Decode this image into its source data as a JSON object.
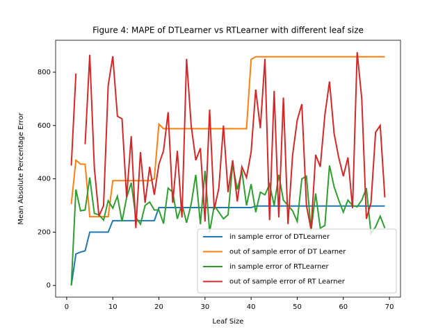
{
  "chart_data": {
    "type": "line",
    "title": "Figure 4: MAPE of DTLearner vs RTLearner with different leaf size",
    "x_label": "Leaf Size",
    "y_label": "Mean Absolute Percentage Error",
    "x": [
      1,
      2,
      3,
      4,
      5,
      6,
      7,
      8,
      9,
      10,
      11,
      12,
      13,
      14,
      15,
      16,
      17,
      18,
      19,
      20,
      21,
      22,
      23,
      24,
      25,
      26,
      27,
      28,
      29,
      30,
      31,
      32,
      33,
      34,
      35,
      36,
      37,
      38,
      39,
      40,
      41,
      42,
      43,
      44,
      45,
      46,
      47,
      48,
      49,
      50,
      51,
      52,
      53,
      54,
      55,
      56,
      57,
      58,
      59,
      60,
      61,
      62,
      63,
      64,
      65,
      66,
      67,
      68,
      69
    ],
    "series": [
      {
        "name": "in sample error of DTLearner",
        "color": "#1f77b4",
        "values": [
          0,
          118,
          125,
          130,
          200,
          200,
          200,
          200,
          200,
          243,
          243,
          243,
          243,
          243,
          243,
          243,
          243,
          243,
          243,
          292,
          292,
          292,
          292,
          292,
          292,
          292,
          292,
          292,
          292,
          292,
          292,
          292,
          292,
          292,
          292,
          292,
          292,
          292,
          292,
          292,
          298,
          298,
          298,
          298,
          298,
          298,
          298,
          298,
          298,
          298,
          298,
          298,
          298,
          298,
          298,
          298,
          298,
          298,
          298,
          298,
          298,
          298,
          298,
          298,
          298,
          298,
          298,
          298,
          298
        ]
      },
      {
        "name": "out of sample error of DT Learner",
        "color": "#ff7f0e",
        "values": [
          305,
          470,
          455,
          455,
          258,
          258,
          258,
          258,
          258,
          393,
          393,
          393,
          393,
          393,
          393,
          393,
          393,
          393,
          400,
          605,
          588,
          588,
          588,
          588,
          588,
          588,
          588,
          588,
          588,
          588,
          588,
          588,
          588,
          588,
          588,
          588,
          588,
          588,
          588,
          848,
          858,
          858,
          858,
          858,
          858,
          858,
          858,
          858,
          858,
          858,
          858,
          858,
          858,
          858,
          858,
          858,
          858,
          858,
          858,
          858,
          858,
          858,
          858,
          858,
          858,
          858,
          858,
          858,
          858
        ]
      },
      {
        "name": "in sample error of RTLearner",
        "color": "#2ca02c",
        "values": [
          0,
          360,
          280,
          283,
          405,
          270,
          265,
          245,
          318,
          290,
          335,
          240,
          330,
          385,
          255,
          230,
          300,
          313,
          283,
          283,
          232,
          365,
          350,
          250,
          305,
          235,
          305,
          415,
          230,
          430,
          200,
          300,
          275,
          250,
          265,
          455,
          360,
          430,
          300,
          380,
          275,
          350,
          340,
          380,
          300,
          415,
          320,
          300,
          280,
          240,
          400,
          410,
          205,
          345,
          215,
          225,
          450,
          370,
          320,
          275,
          320,
          300,
          295,
          320,
          365,
          195,
          220,
          260,
          215
        ]
      },
      {
        "name": "out of sample error of RT Learner",
        "color": "#d62728",
        "values": [
          450,
          795,
          null,
          530,
          865,
          440,
          260,
          300,
          750,
          860,
          635,
          625,
          330,
          560,
          215,
          500,
          310,
          445,
          340,
          455,
          505,
          650,
          310,
          505,
          255,
          850,
          600,
          470,
          515,
          240,
          660,
          285,
          365,
          600,
          350,
          470,
          315,
          445,
          405,
          500,
          735,
          590,
          850,
          245,
          730,
          255,
          705,
          230,
          490,
          620,
          680,
          300,
          210,
          490,
          445,
          640,
          765,
          570,
          480,
          410,
          480,
          290,
          875,
          700,
          250,
          310,
          575,
          600,
          330
        ]
      }
    ],
    "xlim": [
      -2.4,
      72.4
    ],
    "ylim": [
      -43.8,
      919.8
    ],
    "xticks": [
      0,
      10,
      20,
      30,
      40,
      50,
      60,
      70
    ],
    "yticks": [
      0,
      200,
      400,
      600,
      800
    ],
    "legend": "lower right"
  }
}
